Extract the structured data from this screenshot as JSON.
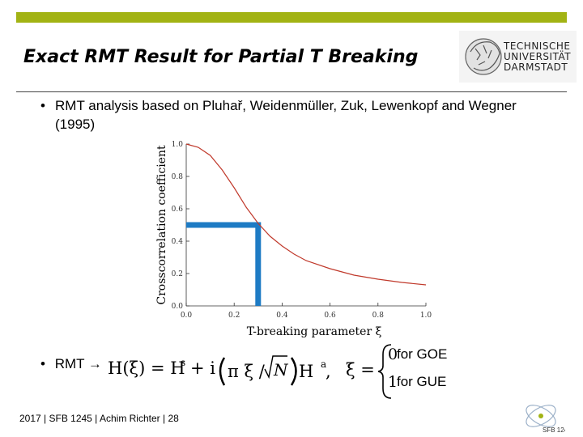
{
  "slide": {
    "title": "Exact RMT Result for Partial T Breaking",
    "accent_color": "#a2b314",
    "logo": {
      "lines": [
        "TECHNISCHE",
        "UNIVERSITÄT",
        "DARMSTADT"
      ],
      "icon": "athena-head-icon"
    },
    "bullets": [
      {
        "symbol": "•",
        "text": "RMT analysis based on Pluhař, Weidenmüller, Zuk, Lewenkopf and Wegner  (1995)"
      },
      {
        "symbol": "•",
        "text": "RMT →"
      }
    ],
    "formula": {
      "lhs": "H(ξ) = H",
      "sup_s": "s",
      "plus_i": "+ i",
      "pi_xi": "π ξ /",
      "sqrt_n": "N",
      "h_a": "H",
      "sup_a": "a",
      "comma": ",",
      "xi_eq": "ξ =",
      "case0_num": "0",
      "case0_text": " for GOE",
      "case1_num": "1",
      "case1_text": " for GUE"
    },
    "footer": "2017 | SFB 1245 | Achim Richter | 28",
    "sfb_logo": {
      "text": "SFB 1245",
      "icon": "sfb-1245-icon"
    }
  },
  "chart_data": {
    "type": "line",
    "xlabel": "T-breaking parameter ξ",
    "ylabel": "Crosscorrelation coefficient",
    "xlim": [
      0.0,
      1.0
    ],
    "ylim": [
      0.0,
      1.0
    ],
    "xticks": [
      "0.0",
      "0.2",
      "0.4",
      "0.6",
      "0.8",
      "1.0"
    ],
    "yticks": [
      "0.0",
      "0.2",
      "0.4",
      "0.6",
      "0.8",
      "1.0"
    ],
    "series": [
      {
        "color": "#c0392b",
        "x": [
          0.0,
          0.05,
          0.1,
          0.15,
          0.2,
          0.25,
          0.3,
          0.35,
          0.4,
          0.45,
          0.5,
          0.6,
          0.7,
          0.8,
          0.9,
          1.0
        ],
        "y": [
          1.0,
          0.98,
          0.93,
          0.84,
          0.73,
          0.61,
          0.51,
          0.43,
          0.37,
          0.32,
          0.28,
          0.23,
          0.19,
          0.165,
          0.145,
          0.13
        ]
      }
    ],
    "marker": {
      "x": 0.3,
      "y": 0.5,
      "color": "#1e7bc4"
    },
    "grid": false,
    "legend": "none"
  }
}
